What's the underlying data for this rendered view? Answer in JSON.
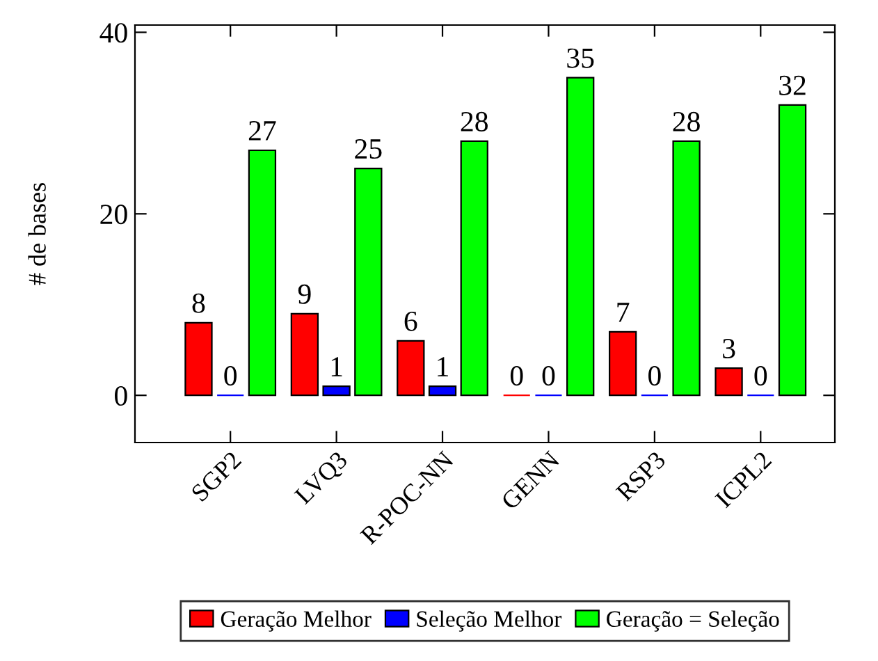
{
  "chart_data": {
    "type": "bar",
    "ylabel": "# de bases",
    "categories": [
      "SGP2",
      "LVQ3",
      "R-POC-NN",
      "GENN",
      "RSP3",
      "ICPL2"
    ],
    "series": [
      {
        "name": "Geração Melhor",
        "color": "#ff0000",
        "values": [
          8,
          9,
          6,
          0,
          7,
          3
        ]
      },
      {
        "name": "Seleção Melhor",
        "color": "#0000ff",
        "values": [
          0,
          1,
          1,
          0,
          0,
          0
        ]
      },
      {
        "name": "Geração = Seleção",
        "color": "#00ff00",
        "values": [
          27,
          25,
          28,
          35,
          28,
          32
        ]
      }
    ],
    "ylim": [
      -5.2,
      40.8
    ],
    "yticks": [
      0,
      20,
      40
    ],
    "data_labels": true,
    "grid": false,
    "legend": "bottom"
  }
}
